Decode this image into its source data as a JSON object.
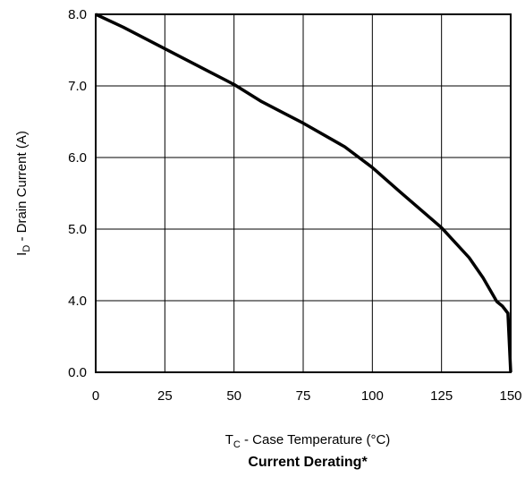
{
  "chart_data": {
    "type": "line",
    "title": "Current Derating*",
    "xlabel": {
      "main": "T",
      "sub": "C",
      "rest": " - Case Temperature (°C)"
    },
    "ylabel": {
      "main": "I",
      "sub": "D",
      "rest": " - Drain Current (A)"
    },
    "xlim": [
      0,
      150
    ],
    "x_ticks": [
      0,
      25,
      50,
      75,
      100,
      125,
      150
    ],
    "x_tick_labels": [
      "0",
      "25",
      "50",
      "75",
      "100",
      "125",
      "150"
    ],
    "y_tick_labels": [
      "0.0",
      "4.0",
      "5.0",
      "6.0",
      "7.0",
      "8.0"
    ],
    "y_tick_values": [
      0.0,
      4.0,
      5.0,
      6.0,
      7.0,
      8.0
    ],
    "y_scale_note": "non-uniform axis: equal spacing between printed ticks",
    "grid": true,
    "series": [
      {
        "x": [
          0,
          10,
          25,
          40,
          50,
          60,
          75,
          90,
          100,
          110,
          125,
          135,
          140,
          145,
          147,
          149,
          150
        ],
        "y": [
          8.0,
          7.82,
          7.52,
          7.22,
          7.02,
          6.78,
          6.48,
          6.15,
          5.86,
          5.52,
          5.02,
          4.6,
          4.32,
          3.95,
          3.7,
          3.3,
          0.0
        ]
      }
    ],
    "colors": {
      "line": "#000000",
      "grid": "#000000"
    }
  }
}
